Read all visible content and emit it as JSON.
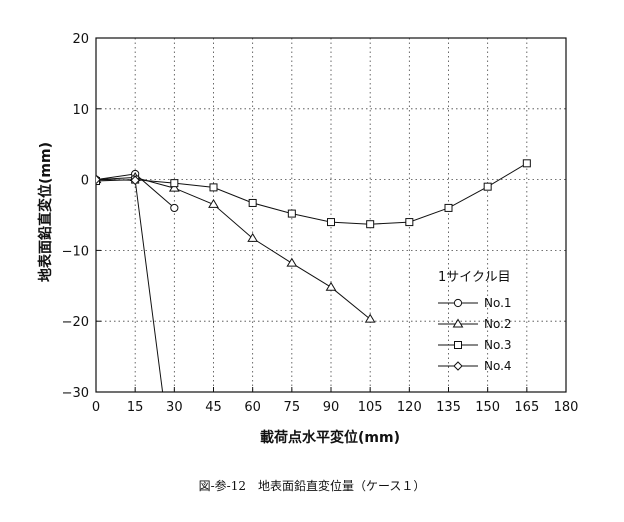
{
  "chart_data": {
    "type": "line",
    "title": "",
    "xlabel": "載荷点水平変位(mm)",
    "ylabel": "地表面鉛直変位(mm)",
    "xlim": [
      0,
      180
    ],
    "ylim": [
      -30,
      20
    ],
    "x_ticks": [
      0,
      15,
      30,
      45,
      60,
      75,
      90,
      105,
      120,
      135,
      150,
      165,
      180
    ],
    "y_ticks": [
      -30,
      -20,
      -10,
      0,
      10,
      20
    ],
    "grid": true,
    "grid_style": "dotted",
    "legend_title": "1サイクル目",
    "legend_position": "right",
    "series": [
      {
        "name": "No.1",
        "marker": "circle",
        "x": [
          0,
          15,
          30
        ],
        "y": [
          0,
          0.8,
          -4
        ]
      },
      {
        "name": "No.2",
        "marker": "triangle",
        "x": [
          0,
          15,
          30,
          45,
          60,
          75,
          90,
          105
        ],
        "y": [
          0,
          0.3,
          -1.2,
          -3.5,
          -8.3,
          -11.8,
          -15.2,
          -19.7
        ]
      },
      {
        "name": "No.3",
        "marker": "square",
        "x": [
          0,
          15,
          30,
          45,
          60,
          75,
          90,
          105,
          120,
          135,
          150,
          165
        ],
        "y": [
          -0.2,
          0,
          -0.5,
          -1.1,
          -3.3,
          -4.8,
          -6,
          -6.3,
          -6,
          -4,
          -1,
          2.3
        ]
      },
      {
        "name": "No.4",
        "marker": "diamond",
        "x": [
          0,
          15,
          25.5
        ],
        "y": [
          0,
          -0.1,
          -30
        ]
      }
    ]
  },
  "caption": "図-参-12　地表面鉛直変位量（ケース１）"
}
